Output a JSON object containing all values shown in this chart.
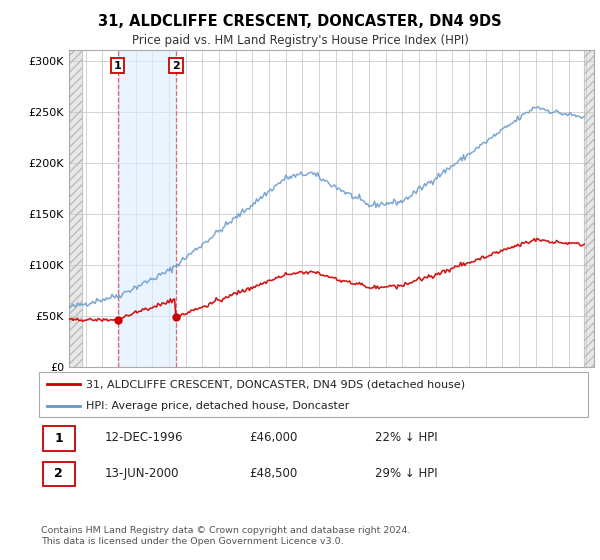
{
  "title": "31, ALDCLIFFE CRESCENT, DONCASTER, DN4 9DS",
  "subtitle": "Price paid vs. HM Land Registry's House Price Index (HPI)",
  "sale1_year": 1996,
  "sale1_month": 12,
  "sale1_price": 46000,
  "sale2_year": 2000,
  "sale2_month": 6,
  "sale2_price": 48500,
  "hpi_color": "#6699cc",
  "sold_color": "#cc0000",
  "legend1": "31, ALDCLIFFE CRESCENT, DONCASTER, DN4 9DS (detached house)",
  "legend2": "HPI: Average price, detached house, Doncaster",
  "table_row1": [
    "1",
    "12-DEC-1996",
    "£46,000",
    "22% ↓ HPI"
  ],
  "table_row2": [
    "2",
    "13-JUN-2000",
    "£48,500",
    "29% ↓ HPI"
  ],
  "footnote": "Contains HM Land Registry data © Crown copyright and database right 2024.\nThis data is licensed under the Open Government Licence v3.0.",
  "ylim": [
    0,
    310000
  ],
  "xmin": 1994,
  "xmax": 2025
}
